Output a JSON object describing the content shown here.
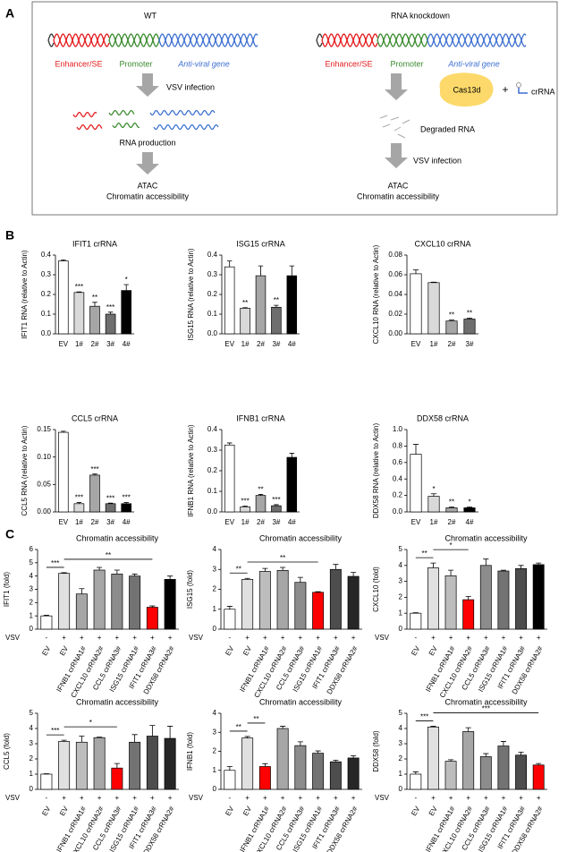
{
  "panels": {
    "a": "A",
    "b": "B",
    "c": "C"
  },
  "diagram": {
    "left": {
      "title": "WT",
      "enhancer": "Enhancer/SE",
      "promoter": "Promoter",
      "gene": "Anti-viral gene",
      "step1": "VSV infection",
      "step2": "RNA production",
      "assay": "ATAC",
      "readout": "Chromatin accessibility"
    },
    "right": {
      "title": "RNA knockdown",
      "enhancer": "Enhancer/SE",
      "promoter": "Promoter",
      "gene": "Anti-viral gene",
      "enzyme": "Cas13d",
      "plus": "+",
      "guide": "crRNA",
      "step1": "Degraded RNA",
      "step2": "VSV infection",
      "assay": "ATAC",
      "readout": "Chromatin accessibility"
    }
  },
  "chart_data": [
    {
      "type": "bar",
      "title": "IFIT1 crRNA",
      "ylabel": "IFIT1 RNA (relative to Actin)",
      "categories": [
        "EV",
        "1#",
        "2#",
        "3#",
        "4#"
      ],
      "values": [
        0.37,
        0.21,
        0.14,
        0.1,
        0.22
      ],
      "errors": [
        0.005,
        0.003,
        0.02,
        0.01,
        0.03
      ],
      "significance": [
        null,
        "***",
        "**",
        "***",
        "*"
      ],
      "colors": [
        "#ffffff",
        "#d9d9d9",
        "#a6a6a6",
        "#6e6e6e",
        "#000000"
      ],
      "ylim": [
        0,
        0.4
      ],
      "yticks": [
        {
          "value": 0,
          "label": "0.0"
        },
        0.1,
        0.2,
        0.3,
        0.4
      ]
    },
    {
      "type": "bar",
      "title": "ISG15 crRNA",
      "ylabel": "ISG15 RNA (relative to Actin)",
      "categories": [
        "EV",
        "1#",
        "2#",
        "3#",
        "4#"
      ],
      "values": [
        0.34,
        0.13,
        0.295,
        0.135,
        0.295
      ],
      "errors": [
        0.03,
        0.003,
        0.05,
        0.01,
        0.05
      ],
      "significance": [
        null,
        "**",
        null,
        "**",
        null
      ],
      "colors": [
        "#ffffff",
        "#d9d9d9",
        "#a6a6a6",
        "#6e6e6e",
        "#000000"
      ],
      "ylim": [
        0,
        0.4
      ],
      "yticks": [
        {
          "value": 0,
          "label": "0.0"
        },
        0.1,
        0.2,
        0.3,
        0.4
      ]
    },
    {
      "type": "bar",
      "title": "CXCL10 crRNA",
      "ylabel": "CXCL10 RNA (relative to Actin)",
      "categories": [
        "EV",
        "1#",
        "2#",
        "3#"
      ],
      "values": [
        0.061,
        0.052,
        0.013,
        0.015
      ],
      "errors": [
        0.004,
        0.0005,
        0.001,
        0.001
      ],
      "significance": [
        null,
        null,
        "**",
        "**"
      ],
      "colors": [
        "#ffffff",
        "#d9d9d9",
        "#a6a6a6",
        "#6e6e6e"
      ],
      "ylim": [
        0,
        0.08
      ],
      "yticks": [
        {
          "value": 0,
          "label": "0.00"
        },
        0.02,
        0.04,
        0.06,
        0.08
      ]
    },
    {
      "type": "bar",
      "title": "CCL5 crRNA",
      "ylabel": "CCL5 RNA (relative to Actin)",
      "categories": [
        "EV",
        "1#",
        "2#",
        "3#",
        "4#"
      ],
      "values": [
        0.145,
        0.015,
        0.067,
        0.015,
        0.015
      ],
      "errors": [
        0.002,
        0.002,
        0.002,
        0.001,
        0.002
      ],
      "significance": [
        null,
        "***",
        "***",
        "***",
        "***"
      ],
      "colors": [
        "#ffffff",
        "#d9d9d9",
        "#a6a6a6",
        "#6e6e6e",
        "#000000"
      ],
      "ylim": [
        0,
        0.15
      ],
      "yticks": [
        {
          "value": 0,
          "label": "0.00"
        },
        0.05,
        {
          "value": 0.1,
          "label": "0.10"
        },
        0.15
      ]
    },
    {
      "type": "bar",
      "title": "IFNB1 crRNA",
      "ylabel": "IFNB1 RNA (relative to Actin)",
      "categories": [
        "EV",
        "1#",
        "2#",
        "3#",
        "4#"
      ],
      "values": [
        0.325,
        0.025,
        0.08,
        0.03,
        0.265
      ],
      "errors": [
        0.01,
        0.003,
        0.005,
        0.005,
        0.02
      ],
      "significance": [
        null,
        "***",
        "**",
        "***",
        null
      ],
      "colors": [
        "#ffffff",
        "#d9d9d9",
        "#a6a6a6",
        "#6e6e6e",
        "#000000"
      ],
      "ylim": [
        0,
        0.4
      ],
      "yticks": [
        {
          "value": 0,
          "label": "0.0"
        },
        0.1,
        0.2,
        0.3,
        0.4
      ]
    },
    {
      "type": "bar",
      "title": "DDX58 crRNA",
      "ylabel": "DDX58 RNA (relative to Actin)",
      "categories": [
        "EV",
        "1#",
        "2#",
        "4#"
      ],
      "values": [
        0.7,
        0.19,
        0.05,
        0.05
      ],
      "errors": [
        0.12,
        0.03,
        0.01,
        0.01
      ],
      "significance": [
        null,
        "*",
        "**",
        "*"
      ],
      "colors": [
        "#ffffff",
        "#d9d9d9",
        "#a6a6a6",
        "#000000"
      ],
      "ylim": [
        0,
        1.0
      ],
      "yticks": [
        {
          "value": 0,
          "label": "0.0"
        },
        0.2,
        0.4,
        0.6,
        0.8,
        {
          "value": 1.0,
          "label": "1.0"
        }
      ]
    },
    {
      "type": "bar",
      "title": "Chromatin accessibility",
      "ylabel": "IFIT1 (fold)",
      "categories": [
        "EV",
        "EV",
        "IFNB1 crRNA1#",
        "CXCL10 crRNA2#",
        "CCL5 crRNA3#",
        "ISG15 crRNA1#",
        "IFIT1 crRNA3#",
        "DDX58 crRNA2#"
      ],
      "vsv": {
        "label": "VSV",
        "signs": [
          "-",
          "+",
          "+",
          "+",
          "+",
          "+",
          "+",
          "+"
        ]
      },
      "values": [
        1.0,
        4.2,
        2.65,
        4.45,
        4.15,
        4.0,
        1.65,
        3.75
      ],
      "errors": [
        0.05,
        0.05,
        0.4,
        0.2,
        0.3,
        0.15,
        0.1,
        0.25
      ],
      "colors": [
        "#ffffff",
        "#e0e0e0",
        "#a6a6a6",
        "#a6a6a6",
        "#8c8c8c",
        "#737373",
        "#ff0000",
        "#000000"
      ],
      "brackets": [
        {
          "from": 0,
          "to": 1,
          "label": "***"
        },
        {
          "from": 1,
          "to": 6,
          "label": "**"
        }
      ],
      "ylim": [
        0,
        6
      ],
      "yticks": [
        0,
        1,
        2,
        3,
        4,
        5,
        6
      ]
    },
    {
      "type": "bar",
      "title": "Chromatin accessibility",
      "ylabel": "ISG15 (fold)",
      "categories": [
        "EV",
        "EV",
        "IFNB1 crRNA1#",
        "CXCL10 crRNA2#",
        "CCL5 crRNA3#",
        "ISG15 crRNA1#",
        "IFIT1 crRNA3#",
        "DDX58 crRNA2#"
      ],
      "vsv": {
        "label": "VSV",
        "signs": [
          "-",
          "+",
          "+",
          "+",
          "+",
          "+",
          "+",
          "+"
        ]
      },
      "values": [
        1.0,
        2.5,
        2.9,
        2.95,
        2.35,
        1.85,
        3.0,
        2.65
      ],
      "errors": [
        0.15,
        0.05,
        0.15,
        0.15,
        0.25,
        0.03,
        0.25,
        0.2
      ],
      "colors": [
        "#ffffff",
        "#e0e0e0",
        "#bdbdbd",
        "#a6a6a6",
        "#8c8c8c",
        "#ff0000",
        "#4d4d4d",
        "#262626"
      ],
      "brackets": [
        {
          "from": 0,
          "to": 1,
          "label": "**"
        },
        {
          "from": 1,
          "to": 5,
          "label": "**"
        }
      ],
      "ylim": [
        0,
        4
      ],
      "yticks": [
        0,
        1,
        2,
        3,
        4
      ]
    },
    {
      "type": "bar",
      "title": "Chromatin accessibility",
      "ylabel": "CXCL10 (fold)",
      "categories": [
        "EV",
        "EV",
        "IFNB1 crRNA1#",
        "CXCL10 crRNA2#",
        "CCL5 crRNA3#",
        "ISG15 crRNA1#",
        "IFIT1 crRNA3#",
        "DDX58 crRNA2#"
      ],
      "vsv": {
        "label": "VSV",
        "signs": [
          "-",
          "+",
          "+",
          "+",
          "+",
          "+",
          "+",
          "+"
        ]
      },
      "values": [
        1.0,
        3.85,
        3.35,
        1.85,
        4.0,
        3.65,
        3.8,
        4.05
      ],
      "errors": [
        0.03,
        0.3,
        0.35,
        0.2,
        0.4,
        0.05,
        0.2,
        0.1
      ],
      "colors": [
        "#ffffff",
        "#e0e0e0",
        "#bdbdbd",
        "#ff0000",
        "#8c8c8c",
        "#737373",
        "#4d4d4d",
        "#000000"
      ],
      "brackets": [
        {
          "from": 0,
          "to": 1,
          "label": "**"
        },
        {
          "from": 1,
          "to": 3,
          "label": "*"
        }
      ],
      "ylim": [
        0,
        5
      ],
      "yticks": [
        0,
        1,
        2,
        3,
        4,
        5
      ]
    },
    {
      "type": "bar",
      "title": "Chromatin accessibility",
      "ylabel": "CCL5 (fold)",
      "categories": [
        "EV",
        "EV",
        "IFNB1 crRNA1#",
        "CXCL10 crRNA2#",
        "CCL5 crRNA3#",
        "ISG15 crRNA1#",
        "IFIT1 crRNA3#",
        "DDX58 crRNA2#"
      ],
      "vsv": {
        "label": "VSV",
        "signs": [
          "-",
          "+",
          "+",
          "+",
          "+",
          "+",
          "+",
          "+"
        ]
      },
      "values": [
        1.0,
        3.15,
        3.1,
        3.4,
        1.4,
        3.1,
        3.5,
        3.35
      ],
      "errors": [
        0.03,
        0.08,
        0.4,
        0.03,
        0.3,
        0.5,
        0.7,
        0.8
      ],
      "colors": [
        "#ffffff",
        "#e0e0e0",
        "#bdbdbd",
        "#a6a6a6",
        "#ff0000",
        "#737373",
        "#4d4d4d",
        "#262626"
      ],
      "brackets": [
        {
          "from": 0,
          "to": 1,
          "label": "***"
        },
        {
          "from": 1,
          "to": 4,
          "label": "*"
        }
      ],
      "ylim": [
        0,
        5
      ],
      "yticks": [
        0,
        1,
        2,
        3,
        4,
        5
      ]
    },
    {
      "type": "bar",
      "title": "Chromatin accessibility",
      "ylabel": "IFNB1 (fold)",
      "categories": [
        "EV",
        "EV",
        "IFNB1 crRNA1#",
        "CXCL10 crRNA2#",
        "CCL5 crRNA3#",
        "ISG15 crRNA1#",
        "IFIT1 crRNA3#",
        "DDX58 crRNA2#"
      ],
      "vsv": {
        "label": "VSV",
        "signs": [
          "-",
          "+",
          "+",
          "+",
          "+",
          "+",
          "+",
          "+"
        ]
      },
      "values": [
        1.0,
        2.7,
        1.2,
        3.2,
        2.3,
        1.9,
        1.45,
        1.65
      ],
      "errors": [
        0.2,
        0.08,
        0.15,
        0.12,
        0.2,
        0.12,
        0.08,
        0.12
      ],
      "colors": [
        "#ffffff",
        "#e0e0e0",
        "#ff0000",
        "#a6a6a6",
        "#8c8c8c",
        "#737373",
        "#4d4d4d",
        "#262626"
      ],
      "brackets": [
        {
          "from": 0,
          "to": 1,
          "label": "**"
        },
        {
          "from": 1,
          "to": 2,
          "label": "**"
        }
      ],
      "ylim": [
        0,
        4
      ],
      "yticks": [
        0,
        1,
        2,
        3,
        4
      ]
    },
    {
      "type": "bar",
      "title": "Chromatin accessibility",
      "ylabel": "DDX58 (fold)",
      "categories": [
        "EV",
        "EV",
        "IFNB1 crRNA1#",
        "CXCL10 crRNA2#",
        "CCL5 crRNA3#",
        "ISG15 crRNA1#",
        "IFIT1 crRNA3#",
        "DDX58 crRNA2#"
      ],
      "vsv": {
        "label": "VSV",
        "signs": [
          "-",
          "+",
          "+",
          "+",
          "+",
          "+",
          "+",
          "+"
        ]
      },
      "values": [
        1.0,
        4.1,
        1.85,
        3.8,
        2.15,
        2.85,
        2.25,
        1.6
      ],
      "errors": [
        0.15,
        0.05,
        0.1,
        0.25,
        0.2,
        0.3,
        0.2,
        0.1
      ],
      "colors": [
        "#ffffff",
        "#e0e0e0",
        "#bdbdbd",
        "#a6a6a6",
        "#8c8c8c",
        "#737373",
        "#4d4d4d",
        "#ff0000"
      ],
      "brackets": [
        {
          "from": 0,
          "to": 1,
          "label": "***"
        },
        {
          "from": 1,
          "to": 7,
          "label": "***"
        }
      ],
      "ylim": [
        0,
        5
      ],
      "yticks": [
        0,
        1,
        2,
        3,
        4,
        5
      ]
    }
  ]
}
